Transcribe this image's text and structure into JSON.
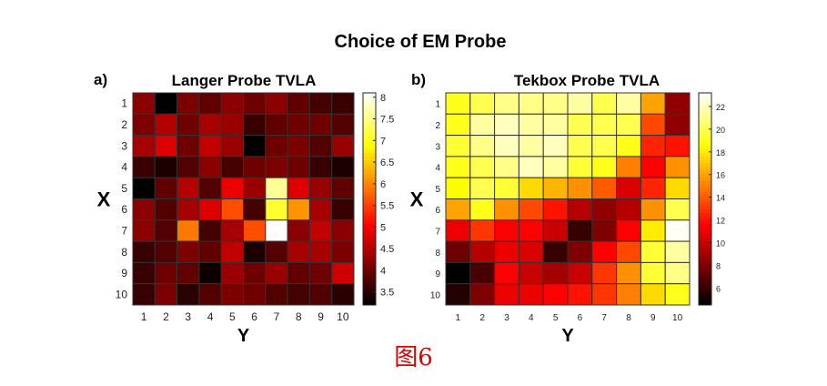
{
  "figure_title": "Choice of EM Probe",
  "caption": "图6",
  "chart_data": [
    {
      "type": "heatmap",
      "panel_label": "a)",
      "title": "Langer Probe TVLA",
      "xlabel": "Y",
      "ylabel": "X",
      "x_ticks": [
        "1",
        "2",
        "3",
        "4",
        "5",
        "6",
        "7",
        "8",
        "9",
        "10"
      ],
      "y_ticks": [
        "1",
        "2",
        "3",
        "4",
        "5",
        "6",
        "7",
        "8",
        "9",
        "10"
      ],
      "colormap": "hot",
      "clim": [
        3.2,
        8.1
      ],
      "colorbar_ticks": [
        "3.5",
        "4",
        "4.5",
        "5",
        "5.5",
        "6",
        "6.5",
        "7",
        "7.5",
        "8"
      ],
      "values": [
        [
          4.2,
          3.2,
          4.1,
          3.9,
          4.2,
          4.0,
          4.2,
          3.9,
          3.7,
          3.6
        ],
        [
          4.1,
          4.5,
          4.0,
          4.4,
          4.3,
          3.6,
          3.9,
          4.0,
          4.0,
          3.8
        ],
        [
          4.4,
          4.8,
          4.0,
          4.6,
          4.3,
          3.2,
          4.0,
          4.1,
          3.8,
          4.3
        ],
        [
          3.6,
          3.4,
          3.8,
          4.2,
          3.7,
          4.0,
          4.1,
          4.0,
          3.6,
          3.4
        ],
        [
          3.2,
          3.9,
          4.5,
          3.8,
          4.9,
          4.3,
          7.6,
          4.8,
          4.3,
          3.9
        ],
        [
          4.2,
          3.8,
          4.4,
          4.8,
          5.6,
          3.7,
          7.1,
          6.1,
          4.4,
          3.6
        ],
        [
          4.2,
          3.8,
          5.9,
          3.7,
          4.4,
          5.6,
          8.1,
          4.2,
          4.6,
          4.2
        ],
        [
          3.6,
          3.8,
          4.1,
          3.9,
          4.6,
          3.4,
          3.8,
          4.4,
          4.4,
          4.1
        ],
        [
          3.6,
          4.0,
          3.9,
          3.3,
          4.3,
          4.0,
          4.3,
          3.9,
          4.0,
          4.7
        ],
        [
          3.6,
          4.1,
          3.5,
          3.8,
          4.1,
          4.0,
          3.8,
          3.7,
          3.8,
          3.5
        ]
      ]
    },
    {
      "type": "heatmap",
      "panel_label": "b)",
      "title": "Tekbox Probe TVLA",
      "xlabel": "Y",
      "ylabel": "X",
      "x_ticks": [
        "1",
        "2",
        "3",
        "4",
        "5",
        "6",
        "7",
        "8",
        "9",
        "10"
      ],
      "y_ticks": [
        "1",
        "2",
        "3",
        "4",
        "5",
        "6",
        "7",
        "8",
        "9",
        "10"
      ],
      "colormap": "hot",
      "clim": [
        4.5,
        23.2
      ],
      "colorbar_ticks": [
        "6",
        "8",
        "10",
        "12",
        "14",
        "16",
        "18",
        "20",
        "22"
      ],
      "values": [
        [
          19,
          20,
          21,
          21,
          21,
          21.5,
          20,
          21.5,
          16,
          8.5
        ],
        [
          19,
          21.5,
          22,
          21.5,
          21.5,
          20,
          20,
          20,
          13.5,
          8.5
        ],
        [
          19.5,
          21,
          22,
          21.5,
          22,
          20,
          20,
          19,
          12.5,
          12
        ],
        [
          19,
          20,
          21,
          22,
          21.5,
          19.5,
          19,
          15,
          11.5,
          15.5
        ],
        [
          18.5,
          20,
          19.5,
          17.5,
          16.5,
          15.5,
          14,
          10.5,
          12.5,
          17.5
        ],
        [
          16,
          19,
          15.5,
          13.5,
          12,
          9.5,
          8.5,
          9.5,
          15.5,
          20
        ],
        [
          11,
          13,
          11.5,
          11.5,
          10,
          6,
          8,
          11.5,
          18,
          23
        ],
        [
          7.5,
          9.5,
          11,
          10.5,
          6,
          8,
          11.5,
          13.5,
          19.5,
          21.5
        ],
        [
          4.5,
          6.5,
          11.5,
          10,
          9,
          10,
          13,
          15.5,
          19.5,
          21
        ],
        [
          5.5,
          8,
          11,
          11,
          11.5,
          12,
          13,
          15,
          17.5,
          19
        ]
      ]
    }
  ]
}
